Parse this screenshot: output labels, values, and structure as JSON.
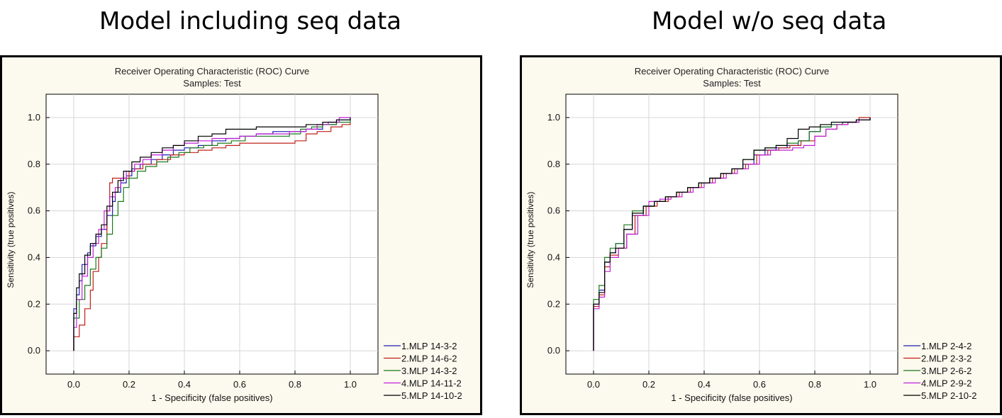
{
  "headlines": {
    "left": "Model including seq data",
    "right": "Model w/o seq data"
  },
  "chart_data": [
    {
      "type": "line",
      "title": "Receiver Operating Characteristic (ROC) Curve",
      "subtitle": "Samples: Test",
      "xlabel": "1 - Specificity (false positives)",
      "ylabel": "Sensitivity (true positives)",
      "xlim": [
        -0.1,
        1.1
      ],
      "ylim": [
        -0.1,
        1.1
      ],
      "xticks": [
        "0.0",
        "0.2",
        "0.4",
        "0.6",
        "0.8",
        "1.0"
      ],
      "yticks": [
        "0.0",
        "0.2",
        "0.4",
        "0.6",
        "0.8",
        "1.0"
      ],
      "grid": true,
      "legend_position": "bottom-right",
      "series": [
        {
          "name": "1.MLP 14-3-2",
          "color": "#1f1fb4",
          "x": [
            0.0,
            0.0,
            0.01,
            0.02,
            0.03,
            0.05,
            0.06,
            0.08,
            0.1,
            0.12,
            0.14,
            0.15,
            0.17,
            0.19,
            0.21,
            0.24,
            0.28,
            0.32,
            0.36,
            0.4,
            0.45,
            0.5,
            0.55,
            0.6,
            0.66,
            0.72,
            0.78,
            0.84,
            0.9,
            0.95,
            1.0
          ],
          "y": [
            0.0,
            0.18,
            0.24,
            0.3,
            0.37,
            0.42,
            0.45,
            0.49,
            0.52,
            0.58,
            0.64,
            0.68,
            0.72,
            0.75,
            0.78,
            0.8,
            0.82,
            0.84,
            0.86,
            0.87,
            0.88,
            0.9,
            0.91,
            0.92,
            0.93,
            0.94,
            0.94,
            0.95,
            0.97,
            0.99,
            1.0
          ]
        },
        {
          "name": "2.MLP 14-6-2",
          "color": "#c0201a",
          "x": [
            0.0,
            0.0,
            0.02,
            0.04,
            0.06,
            0.07,
            0.09,
            0.1,
            0.12,
            0.13,
            0.14,
            0.17,
            0.2,
            0.22,
            0.25,
            0.3,
            0.35,
            0.4,
            0.45,
            0.5,
            0.55,
            0.6,
            0.7,
            0.8,
            0.84,
            0.88,
            0.93,
            0.97,
            1.0
          ],
          "y": [
            0.0,
            0.06,
            0.11,
            0.18,
            0.26,
            0.34,
            0.4,
            0.46,
            0.6,
            0.72,
            0.74,
            0.74,
            0.77,
            0.78,
            0.8,
            0.82,
            0.84,
            0.85,
            0.86,
            0.87,
            0.88,
            0.89,
            0.89,
            0.9,
            0.93,
            0.94,
            0.96,
            0.97,
            0.98
          ]
        },
        {
          "name": "3.MLP 14-3-2",
          "color": "#1a7a1a",
          "x": [
            0.0,
            0.0,
            0.02,
            0.04,
            0.06,
            0.08,
            0.1,
            0.12,
            0.14,
            0.16,
            0.18,
            0.2,
            0.23,
            0.26,
            0.3,
            0.34,
            0.38,
            0.42,
            0.47,
            0.52,
            0.57,
            0.62,
            0.7,
            0.78,
            0.82,
            0.86,
            0.9,
            0.95,
            1.0
          ],
          "y": [
            0.0,
            0.14,
            0.22,
            0.28,
            0.35,
            0.4,
            0.44,
            0.5,
            0.58,
            0.64,
            0.7,
            0.74,
            0.77,
            0.79,
            0.81,
            0.83,
            0.85,
            0.87,
            0.88,
            0.89,
            0.9,
            0.92,
            0.92,
            0.93,
            0.95,
            0.96,
            0.97,
            0.98,
            0.99
          ]
        },
        {
          "name": "4.MLP 14-11-2",
          "color": "#c020d8",
          "x": [
            0.0,
            0.0,
            0.01,
            0.03,
            0.05,
            0.07,
            0.09,
            0.11,
            0.13,
            0.15,
            0.17,
            0.19,
            0.22,
            0.25,
            0.28,
            0.32,
            0.36,
            0.4,
            0.45,
            0.5,
            0.55,
            0.6,
            0.66,
            0.72,
            0.78,
            0.84,
            0.88,
            0.92,
            0.96,
            1.0
          ],
          "y": [
            0.0,
            0.1,
            0.22,
            0.32,
            0.4,
            0.46,
            0.52,
            0.6,
            0.66,
            0.7,
            0.74,
            0.77,
            0.8,
            0.82,
            0.84,
            0.86,
            0.88,
            0.89,
            0.9,
            0.91,
            0.91,
            0.92,
            0.93,
            0.93,
            0.94,
            0.95,
            0.97,
            0.98,
            1.0,
            1.0
          ]
        },
        {
          "name": "5.MLP 14-10-2",
          "color": "#000000",
          "x": [
            0.0,
            0.0,
            0.01,
            0.02,
            0.04,
            0.06,
            0.08,
            0.1,
            0.12,
            0.14,
            0.16,
            0.18,
            0.21,
            0.24,
            0.28,
            0.32,
            0.36,
            0.4,
            0.45,
            0.5,
            0.55,
            0.6,
            0.66,
            0.72,
            0.78,
            0.84,
            0.9,
            0.95,
            1.0
          ],
          "y": [
            0.0,
            0.16,
            0.27,
            0.33,
            0.41,
            0.46,
            0.5,
            0.54,
            0.62,
            0.68,
            0.73,
            0.77,
            0.81,
            0.83,
            0.85,
            0.87,
            0.88,
            0.9,
            0.92,
            0.93,
            0.95,
            0.95,
            0.96,
            0.96,
            0.96,
            0.97,
            0.98,
            0.99,
            1.0
          ]
        }
      ]
    },
    {
      "type": "line",
      "title": "Receiver Operating Characteristic (ROC) Curve",
      "subtitle": "Samples: Test",
      "xlabel": "1 - Specificity (false positives)",
      "ylabel": "Sensitivity (true positives)",
      "xlim": [
        -0.1,
        1.1
      ],
      "ylim": [
        -0.1,
        1.1
      ],
      "xticks": [
        "0.0",
        "0.2",
        "0.4",
        "0.6",
        "0.8",
        "1.0"
      ],
      "yticks": [
        "0.0",
        "0.2",
        "0.4",
        "0.6",
        "0.8",
        "1.0"
      ],
      "grid": true,
      "legend_position": "bottom-right",
      "series": [
        {
          "name": "1.MLP 2-4-2",
          "color": "#1f1fb4",
          "x": [
            0.0,
            0.0,
            0.02,
            0.04,
            0.06,
            0.08,
            0.11,
            0.14,
            0.18,
            0.22,
            0.26,
            0.3,
            0.34,
            0.38,
            0.42,
            0.46,
            0.5,
            0.54,
            0.58,
            0.62,
            0.66,
            0.7,
            0.74,
            0.78,
            0.82,
            0.86,
            0.9,
            0.95,
            1.0
          ],
          "y": [
            0.0,
            0.2,
            0.26,
            0.38,
            0.42,
            0.46,
            0.52,
            0.58,
            0.62,
            0.64,
            0.66,
            0.68,
            0.7,
            0.72,
            0.74,
            0.76,
            0.78,
            0.8,
            0.84,
            0.86,
            0.87,
            0.88,
            0.9,
            0.94,
            0.96,
            0.97,
            0.98,
            0.99,
            1.0
          ]
        },
        {
          "name": "2.MLP 2-3-2",
          "color": "#c0201a",
          "x": [
            0.0,
            0.0,
            0.02,
            0.04,
            0.06,
            0.09,
            0.12,
            0.15,
            0.19,
            0.23,
            0.27,
            0.31,
            0.35,
            0.39,
            0.43,
            0.47,
            0.51,
            0.55,
            0.59,
            0.63,
            0.67,
            0.71,
            0.75,
            0.8,
            0.84,
            0.88,
            0.92,
            0.96,
            1.0
          ],
          "y": [
            0.0,
            0.19,
            0.24,
            0.36,
            0.41,
            0.44,
            0.5,
            0.58,
            0.62,
            0.64,
            0.66,
            0.68,
            0.7,
            0.72,
            0.74,
            0.76,
            0.78,
            0.8,
            0.84,
            0.86,
            0.87,
            0.88,
            0.9,
            0.92,
            0.95,
            0.97,
            0.98,
            1.0,
            1.0
          ]
        },
        {
          "name": "3.MLP 2-6-2",
          "color": "#1a7a1a",
          "x": [
            0.0,
            0.0,
            0.02,
            0.04,
            0.06,
            0.08,
            0.11,
            0.14,
            0.18,
            0.22,
            0.26,
            0.3,
            0.34,
            0.38,
            0.42,
            0.46,
            0.5,
            0.54,
            0.58,
            0.62,
            0.66,
            0.7,
            0.74,
            0.78,
            0.82,
            0.86,
            0.9,
            0.95,
            1.0
          ],
          "y": [
            0.0,
            0.22,
            0.28,
            0.4,
            0.44,
            0.46,
            0.54,
            0.6,
            0.62,
            0.64,
            0.66,
            0.68,
            0.7,
            0.72,
            0.74,
            0.76,
            0.78,
            0.82,
            0.86,
            0.87,
            0.88,
            0.89,
            0.9,
            0.94,
            0.96,
            0.97,
            0.98,
            0.99,
            1.0
          ]
        },
        {
          "name": "4.MLP 2-9-2",
          "color": "#c020d8",
          "x": [
            0.0,
            0.0,
            0.02,
            0.04,
            0.06,
            0.09,
            0.12,
            0.16,
            0.2,
            0.24,
            0.28,
            0.32,
            0.36,
            0.4,
            0.44,
            0.48,
            0.52,
            0.56,
            0.6,
            0.64,
            0.68,
            0.72,
            0.76,
            0.8,
            0.84,
            0.88,
            0.92,
            0.96,
            1.0
          ],
          "y": [
            0.0,
            0.18,
            0.23,
            0.34,
            0.4,
            0.44,
            0.5,
            0.58,
            0.64,
            0.65,
            0.66,
            0.68,
            0.7,
            0.72,
            0.74,
            0.76,
            0.78,
            0.8,
            0.84,
            0.86,
            0.86,
            0.87,
            0.88,
            0.92,
            0.95,
            0.97,
            0.98,
            0.99,
            1.0
          ]
        },
        {
          "name": "5.MLP 2-10-2",
          "color": "#000000",
          "x": [
            0.0,
            0.0,
            0.02,
            0.04,
            0.06,
            0.08,
            0.11,
            0.14,
            0.18,
            0.22,
            0.26,
            0.3,
            0.34,
            0.38,
            0.42,
            0.46,
            0.5,
            0.54,
            0.58,
            0.62,
            0.66,
            0.7,
            0.74,
            0.78,
            0.82,
            0.86,
            0.9,
            0.95,
            1.0
          ],
          "y": [
            0.0,
            0.2,
            0.25,
            0.38,
            0.42,
            0.44,
            0.52,
            0.59,
            0.62,
            0.64,
            0.66,
            0.68,
            0.7,
            0.72,
            0.74,
            0.76,
            0.78,
            0.82,
            0.86,
            0.87,
            0.88,
            0.91,
            0.95,
            0.96,
            0.97,
            0.98,
            0.98,
            0.99,
            1.0
          ]
        }
      ]
    }
  ]
}
